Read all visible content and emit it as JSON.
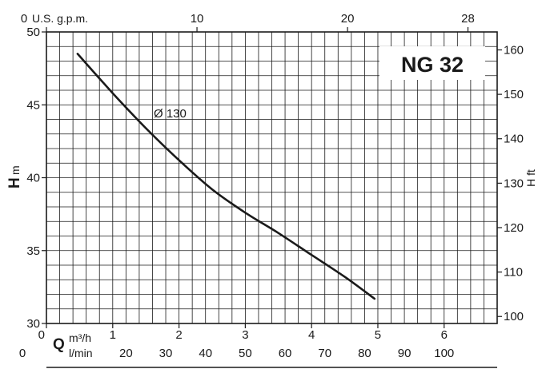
{
  "chart_data": {
    "type": "line",
    "title": "NG 32",
    "curve_label": "Ø 130",
    "x_primary": {
      "symbol": "Q",
      "unit": "m³/h",
      "range": [
        0,
        6.8
      ],
      "ticks": [
        {
          "value": 0,
          "label": "0"
        },
        {
          "value": 1,
          "label": "1"
        },
        {
          "value": 2,
          "label": "2"
        },
        {
          "value": 3,
          "label": "3"
        },
        {
          "value": 4,
          "label": "4"
        },
        {
          "value": 5,
          "label": "5"
        },
        {
          "value": 6,
          "label": "6"
        }
      ]
    },
    "x_lmin": {
      "unit": "l/min",
      "ticks": [
        {
          "value": 0,
          "label": "0"
        },
        {
          "value": 20,
          "label": "20"
        },
        {
          "value": 30,
          "label": "30"
        },
        {
          "value": 40,
          "label": "40"
        },
        {
          "value": 50,
          "label": "50"
        },
        {
          "value": 60,
          "label": "60"
        },
        {
          "value": 70,
          "label": "70"
        },
        {
          "value": 80,
          "label": "80"
        },
        {
          "value": 90,
          "label": "90"
        },
        {
          "value": 100,
          "label": "100"
        }
      ]
    },
    "x_gpm": {
      "unit": "U.S. g.p.m.",
      "ticks": [
        {
          "value": 0,
          "label": "0"
        },
        {
          "value": 10,
          "label": "10"
        },
        {
          "value": 20,
          "label": "20"
        },
        {
          "value": 28,
          "label": "28"
        }
      ]
    },
    "y_left": {
      "symbol": "H",
      "unit": "m",
      "range": [
        30,
        50
      ],
      "ticks": [
        {
          "value": 30,
          "label": "30"
        },
        {
          "value": 35,
          "label": "35"
        },
        {
          "value": 40,
          "label": "40"
        },
        {
          "value": 45,
          "label": "45"
        },
        {
          "value": 50,
          "label": "50"
        }
      ]
    },
    "y_right": {
      "label": "H ft",
      "ticks": [
        {
          "value": 100,
          "label": "100"
        },
        {
          "value": 110,
          "label": "110"
        },
        {
          "value": 120,
          "label": "120"
        },
        {
          "value": 130,
          "label": "130"
        },
        {
          "value": 140,
          "label": "140"
        },
        {
          "value": 150,
          "label": "150"
        },
        {
          "value": 160,
          "label": "160"
        }
      ]
    },
    "series": [
      {
        "x": [
          0.47,
          1.0,
          1.5,
          2.0,
          2.5,
          3.0,
          3.5,
          4.0,
          4.5,
          4.95
        ],
        "y": [
          48.5,
          45.8,
          43.4,
          41.2,
          39.2,
          37.6,
          36.2,
          34.7,
          33.2,
          31.7
        ]
      }
    ],
    "grid": true,
    "colors": {
      "line": "#1a1a1a",
      "grid": "#1a1a1a",
      "background": "#ffffff"
    }
  }
}
